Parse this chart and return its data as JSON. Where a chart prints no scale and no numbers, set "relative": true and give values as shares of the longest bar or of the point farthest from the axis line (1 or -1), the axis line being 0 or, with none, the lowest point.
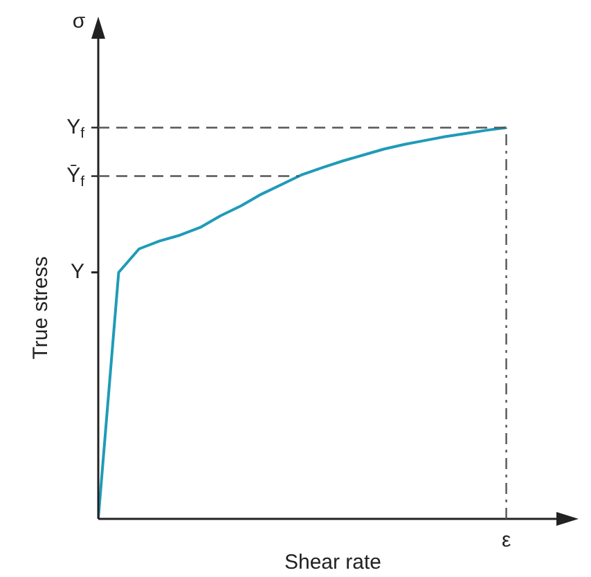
{
  "chart_data": {
    "type": "line",
    "relative": true,
    "xlabel": "Shear rate",
    "ylabel": "True stress",
    "categories": [
      null,
      null,
      null,
      null,
      null,
      null,
      null,
      null,
      null,
      null,
      null,
      null,
      null,
      null,
      null,
      null,
      null,
      null,
      null,
      null,
      null
    ],
    "series": [
      {
        "color": "#1f9bb8",
        "values": [
          0,
          0.63,
          0.69,
          0.71,
          0.725,
          0.745,
          0.775,
          0.8,
          0.83,
          0.855,
          0.88,
          0.898,
          0.915,
          0.93,
          0.945,
          0.957,
          0.967,
          0.977,
          0.985,
          0.993,
          1
        ]
      }
    ],
    "ref_lines": [
      {
        "axis": "y",
        "value": 1,
        "label": "Y$_{f}$",
        "line_style": "dashed"
      },
      {
        "axis": "y",
        "value": 0.876,
        "label": "Ȳ$_{f}$",
        "line_style": "dashed"
      }
    ],
    "annotations": [
      "σ",
      "ε",
      "Y"
    ]
  }
}
